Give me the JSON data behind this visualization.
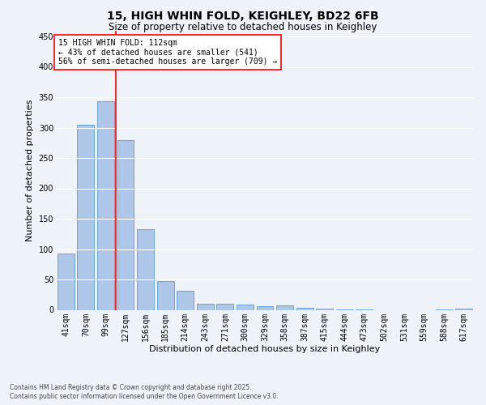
{
  "title1": "15, HIGH WHIN FOLD, KEIGHLEY, BD22 6FB",
  "title2": "Size of property relative to detached houses in Keighley",
  "xlabel": "Distribution of detached houses by size in Keighley",
  "ylabel": "Number of detached properties",
  "categories": [
    "41sqm",
    "70sqm",
    "99sqm",
    "127sqm",
    "156sqm",
    "185sqm",
    "214sqm",
    "243sqm",
    "271sqm",
    "300sqm",
    "329sqm",
    "358sqm",
    "387sqm",
    "415sqm",
    "444sqm",
    "473sqm",
    "502sqm",
    "531sqm",
    "559sqm",
    "588sqm",
    "617sqm"
  ],
  "values": [
    93,
    305,
    344,
    280,
    133,
    47,
    31,
    10,
    10,
    9,
    6,
    8,
    3,
    2,
    1,
    1,
    0,
    0,
    0,
    1,
    2
  ],
  "bar_color": "#aec6e8",
  "bar_edge_color": "#5b9bd5",
  "vline_index": 2,
  "vline_color": "red",
  "annotation_text": "15 HIGH WHIN FOLD: 112sqm\n← 43% of detached houses are smaller (541)\n56% of semi-detached houses are larger (709) →",
  "annotation_box_color": "white",
  "annotation_box_edge_color": "red",
  "footer1": "Contains HM Land Registry data © Crown copyright and database right 2025.",
  "footer2": "Contains public sector information licensed under the Open Government Licence v3.0.",
  "background_color": "#eef2f9",
  "grid_color": "white",
  "ylim": [
    0,
    460
  ],
  "yticks": [
    0,
    50,
    100,
    150,
    200,
    250,
    300,
    350,
    400,
    450
  ],
  "title1_fontsize": 10,
  "title2_fontsize": 8.5,
  "xlabel_fontsize": 8,
  "ylabel_fontsize": 8,
  "tick_fontsize": 7,
  "annot_fontsize": 7,
  "footer_fontsize": 5.5
}
